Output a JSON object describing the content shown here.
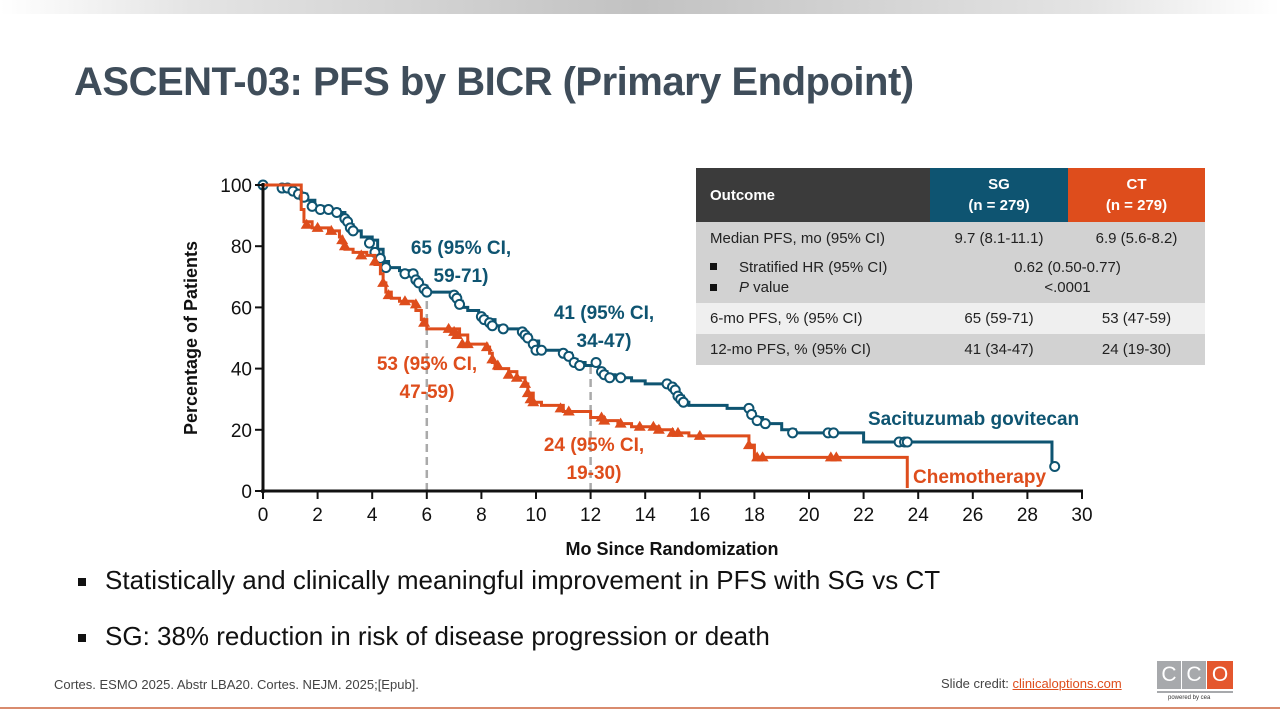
{
  "slide": {
    "title": "ASCENT-03: PFS by BICR (Primary Endpoint)",
    "bullets": [
      "Statistically and clinically meaningful improvement in PFS with SG vs CT",
      "SG: 38% reduction in risk of disease progression or death"
    ],
    "citation": "Cortes. ESMO 2025. Abstr LBA20. Cortes. NEJM. 2025;[Epub].",
    "credit_label": "Slide credit: ",
    "credit_link": "clinicaloptions.com",
    "logo_letters": [
      "C",
      "C",
      "O"
    ],
    "logo_tagline": "powered by cea"
  },
  "table": {
    "header": {
      "outcome": "Outcome",
      "sg_line1": "SG",
      "sg_line2": "(n = 279)",
      "ct_line1": "CT",
      "ct_line2": "(n = 279)"
    },
    "rows": [
      {
        "label": "Median PFS, mo (95% CI)",
        "sg": "9.7 (8.1-11.1)",
        "ct": "6.9 (5.6-8.2)"
      },
      {
        "label": "Stratified HR (95% CI)",
        "combined": "0.62 (0.50-0.77)"
      },
      {
        "label_italic": "P",
        "label": " value",
        "combined": "<.0001"
      },
      {
        "label": "6-mo PFS, % (95% CI)",
        "sg": "65 (59-71)",
        "ct": "53 (47-59)"
      },
      {
        "label": "12-mo PFS, % (95% CI)",
        "sg": "41 (34-47)",
        "ct": "24 (19-30)"
      }
    ],
    "colors": {
      "header_dark": "#3b3b3b",
      "sg": "#0e5471",
      "ct": "#de4d1c"
    }
  },
  "chart_data": {
    "type": "line",
    "subtype": "kaplan-meier",
    "title": "",
    "xlabel": "Mo Since Randomization",
    "ylabel": "Percentage of Patients",
    "xlim": [
      0,
      30
    ],
    "ylim": [
      0,
      100
    ],
    "xticks": [
      0,
      2,
      4,
      6,
      8,
      10,
      12,
      14,
      16,
      18,
      20,
      22,
      24,
      26,
      28,
      30
    ],
    "yticks": [
      0,
      20,
      40,
      60,
      80,
      100
    ],
    "grid": false,
    "reference_lines_x": [
      6,
      12
    ],
    "annotations": [
      {
        "series": "Sacituzumab govitecan",
        "line1": "65 (95% CI,",
        "line2": "59-71)"
      },
      {
        "series": "Sacituzumab govitecan",
        "line1": "41 (95% CI,",
        "line2": "34-47)"
      },
      {
        "series": "Chemotherapy",
        "line1": "53 (95% CI,",
        "line2": "47-59)"
      },
      {
        "series": "Chemotherapy",
        "line1": "24 (95% CI,",
        "line2": "19-30)"
      }
    ],
    "series": [
      {
        "name": "Sacituzumab govitecan",
        "color": "#0e5471",
        "marker": "open-circle",
        "steps": [
          [
            0,
            100
          ],
          [
            0.8,
            99
          ],
          [
            1.1,
            98
          ],
          [
            1.4,
            97
          ],
          [
            1.6,
            95
          ],
          [
            1.9,
            93
          ],
          [
            2.2,
            92
          ],
          [
            2.8,
            91
          ],
          [
            3.0,
            89
          ],
          [
            3.1,
            87
          ],
          [
            3.3,
            85
          ],
          [
            3.6,
            83
          ],
          [
            4.0,
            82
          ],
          [
            4.2,
            79
          ],
          [
            4.4,
            75
          ],
          [
            4.6,
            73
          ],
          [
            5.0,
            72
          ],
          [
            5.4,
            71
          ],
          [
            5.6,
            69
          ],
          [
            5.8,
            67
          ],
          [
            6.0,
            65
          ],
          [
            7.0,
            64
          ],
          [
            7.2,
            62
          ],
          [
            7.3,
            60
          ],
          [
            7.5,
            59
          ],
          [
            7.9,
            58
          ],
          [
            8.0,
            57
          ],
          [
            8.2,
            56
          ],
          [
            8.5,
            54
          ],
          [
            8.8,
            53
          ],
          [
            9.5,
            52
          ],
          [
            9.6,
            51
          ],
          [
            9.8,
            49
          ],
          [
            10.1,
            46
          ],
          [
            11.0,
            45
          ],
          [
            11.3,
            43
          ],
          [
            11.5,
            42
          ],
          [
            11.8,
            41
          ],
          [
            12.0,
            41
          ],
          [
            12.3,
            39
          ],
          [
            12.6,
            38
          ],
          [
            12.9,
            37
          ],
          [
            13.5,
            36
          ],
          [
            14.0,
            35
          ],
          [
            14.8,
            34
          ],
          [
            15.0,
            33
          ],
          [
            15.2,
            31
          ],
          [
            15.4,
            29
          ],
          [
            15.6,
            28
          ],
          [
            17.0,
            27
          ],
          [
            17.8,
            26
          ],
          [
            18.0,
            24
          ],
          [
            18.3,
            22
          ],
          [
            19.0,
            20
          ],
          [
            19.5,
            19
          ],
          [
            22.0,
            16
          ],
          [
            28.9,
            8
          ]
        ],
        "markers": [
          [
            0,
            100
          ],
          [
            0.7,
            99
          ],
          [
            0.9,
            99
          ],
          [
            1.1,
            98
          ],
          [
            1.3,
            97
          ],
          [
            1.5,
            96
          ],
          [
            1.8,
            93
          ],
          [
            2.1,
            92
          ],
          [
            2.4,
            92
          ],
          [
            2.7,
            91
          ],
          [
            3.0,
            89
          ],
          [
            3.1,
            88
          ],
          [
            3.2,
            86
          ],
          [
            3.3,
            85
          ],
          [
            3.9,
            81
          ],
          [
            4.1,
            78
          ],
          [
            4.3,
            76
          ],
          [
            4.5,
            73
          ],
          [
            5.2,
            71
          ],
          [
            5.5,
            71
          ],
          [
            5.6,
            69
          ],
          [
            5.7,
            68
          ],
          [
            5.9,
            66
          ],
          [
            6.0,
            65
          ],
          [
            7.0,
            64
          ],
          [
            7.1,
            63
          ],
          [
            7.2,
            61
          ],
          [
            8.0,
            57
          ],
          [
            8.1,
            56
          ],
          [
            8.3,
            55
          ],
          [
            8.4,
            54
          ],
          [
            8.8,
            53
          ],
          [
            9.5,
            52
          ],
          [
            9.6,
            51
          ],
          [
            9.7,
            50
          ],
          [
            9.9,
            48
          ],
          [
            10.0,
            46
          ],
          [
            10.2,
            46
          ],
          [
            11.0,
            45
          ],
          [
            11.2,
            44
          ],
          [
            11.4,
            42
          ],
          [
            11.6,
            41
          ],
          [
            12.2,
            42
          ],
          [
            12.4,
            39
          ],
          [
            12.5,
            38
          ],
          [
            12.7,
            37
          ],
          [
            13.1,
            37
          ],
          [
            14.8,
            35
          ],
          [
            15.0,
            34
          ],
          [
            15.1,
            33
          ],
          [
            15.2,
            31
          ],
          [
            15.3,
            30
          ],
          [
            15.4,
            29
          ],
          [
            17.8,
            27
          ],
          [
            17.9,
            25
          ],
          [
            18.1,
            23
          ],
          [
            18.4,
            22
          ],
          [
            19.4,
            19
          ],
          [
            20.7,
            19
          ],
          [
            20.9,
            19
          ],
          [
            23.3,
            16
          ],
          [
            23.5,
            16
          ],
          [
            23.6,
            16
          ],
          [
            29.0,
            8
          ]
        ]
      },
      {
        "name": "Chemotherapy",
        "color": "#de4d1c",
        "marker": "filled-triangle",
        "steps": [
          [
            0,
            100
          ],
          [
            1.4,
            92
          ],
          [
            1.5,
            88
          ],
          [
            1.8,
            86
          ],
          [
            2.4,
            85
          ],
          [
            2.8,
            83
          ],
          [
            2.9,
            81
          ],
          [
            3.0,
            79
          ],
          [
            3.3,
            78
          ],
          [
            3.8,
            77
          ],
          [
            4.1,
            74
          ],
          [
            4.3,
            71
          ],
          [
            4.4,
            68
          ],
          [
            4.5,
            65
          ],
          [
            4.7,
            63
          ],
          [
            5.0,
            62
          ],
          [
            5.5,
            61
          ],
          [
            5.6,
            59
          ],
          [
            5.8,
            56
          ],
          [
            6.0,
            53
          ],
          [
            7.0,
            53
          ],
          [
            7.2,
            51
          ],
          [
            7.5,
            48
          ],
          [
            8.2,
            47
          ],
          [
            8.3,
            45
          ],
          [
            8.4,
            42
          ],
          [
            8.5,
            40
          ],
          [
            9.0,
            39
          ],
          [
            9.3,
            37
          ],
          [
            9.6,
            35
          ],
          [
            9.7,
            32
          ],
          [
            9.9,
            29
          ],
          [
            10.2,
            28
          ],
          [
            11.0,
            26
          ],
          [
            12.0,
            24
          ],
          [
            12.5,
            23
          ],
          [
            13.0,
            22
          ],
          [
            13.5,
            21
          ],
          [
            14.5,
            20
          ],
          [
            15.0,
            19
          ],
          [
            15.6,
            18
          ],
          [
            17.6,
            18
          ],
          [
            17.8,
            15
          ],
          [
            18.0,
            11
          ],
          [
            23.6,
            1
          ]
        ],
        "markers": [
          [
            1.6,
            87
          ],
          [
            2.0,
            86
          ],
          [
            2.5,
            85
          ],
          [
            2.9,
            82
          ],
          [
            3.0,
            80
          ],
          [
            3.6,
            77
          ],
          [
            4.1,
            75
          ],
          [
            4.4,
            68
          ],
          [
            4.6,
            64
          ],
          [
            5.2,
            62
          ],
          [
            5.6,
            61
          ],
          [
            5.9,
            55
          ],
          [
            6.8,
            53
          ],
          [
            7.0,
            52
          ],
          [
            7.1,
            51
          ],
          [
            7.3,
            48
          ],
          [
            7.5,
            48
          ],
          [
            8.2,
            47
          ],
          [
            8.4,
            43
          ],
          [
            8.6,
            41
          ],
          [
            9.0,
            38
          ],
          [
            9.3,
            37
          ],
          [
            9.6,
            35
          ],
          [
            9.7,
            32
          ],
          [
            9.8,
            30
          ],
          [
            9.9,
            29
          ],
          [
            10.9,
            27
          ],
          [
            11.2,
            26
          ],
          [
            12.4,
            24
          ],
          [
            12.5,
            23
          ],
          [
            13.1,
            22
          ],
          [
            13.8,
            21
          ],
          [
            14.3,
            21
          ],
          [
            14.5,
            20
          ],
          [
            15.0,
            19
          ],
          [
            15.2,
            19
          ],
          [
            16.0,
            18
          ],
          [
            17.8,
            15
          ],
          [
            18.1,
            11
          ],
          [
            18.3,
            11
          ],
          [
            20.8,
            11
          ],
          [
            21.0,
            11
          ]
        ]
      }
    ],
    "legend": [
      {
        "label": "Sacituzumab govitecan",
        "position": "right-of-curve"
      },
      {
        "label": "Chemotherapy",
        "position": "right-of-curve"
      }
    ]
  }
}
